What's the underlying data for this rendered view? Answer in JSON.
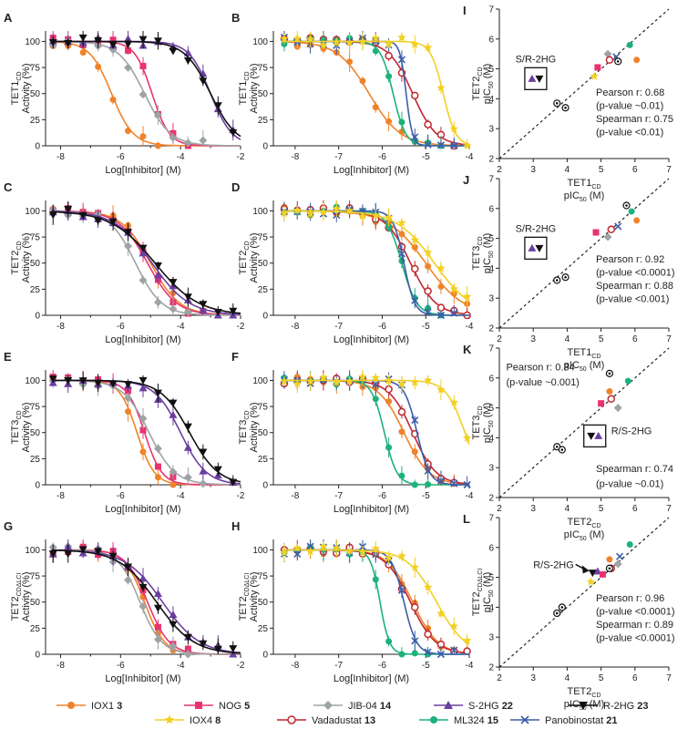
{
  "colors": {
    "IOX1": "#f0832a",
    "NOG": "#e8336f",
    "JIB04": "#9ea3a6",
    "S2HG": "#6b3fa0",
    "R2HG": "#111111",
    "IOX4": "#f2d024",
    "Vadadustat": "#c0272d",
    "ML324": "#1db27a",
    "Panobinostat": "#3b5ea8"
  },
  "legend": [
    {
      "key": "IOX1",
      "name": "IOX1",
      "num": "3",
      "marker": "circle"
    },
    {
      "key": "NOG",
      "name": "NOG",
      "num": "5",
      "marker": "square"
    },
    {
      "key": "JIB04",
      "name": "JIB-04",
      "num": "14",
      "marker": "diamond"
    },
    {
      "key": "S2HG",
      "name": "S-2HG",
      "num": "22",
      "marker": "tri-up"
    },
    {
      "key": "R2HG",
      "name": "R-2HG",
      "num": "23",
      "marker": "tri-down"
    },
    {
      "key": "IOX4",
      "name": "IOX4",
      "num": "8",
      "marker": "star"
    },
    {
      "key": "Vadadustat",
      "name": "Vadadustat",
      "num": "13",
      "marker": "open-circle"
    },
    {
      "key": "ML324",
      "name": "ML324",
      "num": "15",
      "marker": "circle"
    },
    {
      "key": "Panobinostat",
      "name": "Panobinostat",
      "num": "21",
      "marker": "x"
    }
  ],
  "chart_data": [
    {
      "id": "A",
      "type": "line",
      "enzyme": "TET1",
      "sub": "CD",
      "ylabel_line2": "Activity (%)",
      "xlabel": "Log[Inhibitor] (M)",
      "xlim": [
        -8.5,
        -2
      ],
      "ylim": [
        0,
        110
      ],
      "xticks": [
        -8,
        -6,
        -4,
        -2
      ],
      "yticks": [
        0,
        25,
        50,
        75,
        100
      ],
      "series": [
        {
          "key": "IOX1",
          "logIC50": -6.3,
          "hill": 1.2
        },
        {
          "key": "NOG",
          "logIC50": -4.95,
          "hill": 1.5
        },
        {
          "key": "JIB04",
          "logIC50": -5.2,
          "hill": 1.0
        },
        {
          "key": "S2HG",
          "logIC50": -3.0,
          "hill": 1.2
        },
        {
          "key": "R2HG",
          "logIC50": -3.0,
          "hill": 1.0
        }
      ]
    },
    {
      "id": "B",
      "type": "line",
      "enzyme": "TET1",
      "sub": "CD",
      "ylabel_line2": "Activity (%)",
      "xlabel": "Log[Inhibitor] (M)",
      "xlim": [
        -8.5,
        -4
      ],
      "ylim": [
        0,
        110
      ],
      "xticks": [
        -8,
        -7,
        -6,
        -5,
        -4
      ],
      "yticks": [
        0,
        25,
        50,
        75,
        100
      ],
      "series": [
        {
          "key": "IOX1",
          "logIC50": -6.3,
          "hill": 1.2
        },
        {
          "key": "Vadadustat",
          "logIC50": -5.3,
          "hill": 1.6
        },
        {
          "key": "ML324",
          "logIC50": -5.75,
          "hill": 3.0
        },
        {
          "key": "Panobinostat",
          "logIC50": -5.45,
          "hill": 6.0
        },
        {
          "key": "IOX4",
          "logIC50": -4.6,
          "hill": 3.0
        }
      ]
    },
    {
      "id": "C",
      "type": "line",
      "enzyme": "TET2",
      "sub": "CD",
      "ylabel_line2": "Activity (%)",
      "xlabel": "Log[Inhibitor] (M)",
      "xlim": [
        -8.5,
        -2
      ],
      "ylim": [
        0,
        110
      ],
      "xticks": [
        -8,
        -6,
        -4,
        -2
      ],
      "yticks": [
        0,
        25,
        50,
        75,
        100
      ],
      "series": [
        {
          "key": "IOX1",
          "logIC50": -5.0,
          "hill": 0.9
        },
        {
          "key": "NOG",
          "logIC50": -5.1,
          "hill": 0.9
        },
        {
          "key": "JIB04",
          "logIC50": -5.5,
          "hill": 1.0
        },
        {
          "key": "S2HG",
          "logIC50": -4.95,
          "hill": 0.7
        },
        {
          "key": "R2HG",
          "logIC50": -4.85,
          "hill": 0.6
        }
      ]
    },
    {
      "id": "D",
      "type": "line",
      "enzyme": "TET2",
      "sub": "CD",
      "ylabel_line2": "Activity (%)",
      "xlabel": "Log[Inhibitor] (M)",
      "xlim": [
        -8.5,
        -4
      ],
      "ylim": [
        0,
        110
      ],
      "xticks": [
        -8,
        -7,
        -6,
        -5,
        -4
      ],
      "yticks": [
        0,
        25,
        50,
        75,
        100
      ],
      "series": [
        {
          "key": "IOX1",
          "logIC50": -5.0,
          "hill": 1.0
        },
        {
          "key": "Vadadustat",
          "logIC50": -5.35,
          "hill": 1.5
        },
        {
          "key": "ML324",
          "logIC50": -5.55,
          "hill": 2.5
        },
        {
          "key": "Panobinostat",
          "logIC50": -5.5,
          "hill": 3.5
        },
        {
          "key": "IOX4",
          "logIC50": -4.8,
          "hill": 1.0
        }
      ]
    },
    {
      "id": "E",
      "type": "line",
      "enzyme": "TET3",
      "sub": "CD",
      "ylabel_line2": "Activity (%)",
      "xlabel": "Log[Inhibitor] (M)",
      "xlim": [
        -8.5,
        -2
      ],
      "ylim": [
        0,
        110
      ],
      "xticks": [
        -8,
        -6,
        -4,
        -2
      ],
      "yticks": [
        0,
        25,
        50,
        75,
        100
      ],
      "series": [
        {
          "key": "IOX1",
          "logIC50": -5.45,
          "hill": 1.5
        },
        {
          "key": "NOG",
          "logIC50": -5.2,
          "hill": 1.5
        },
        {
          "key": "JIB04",
          "logIC50": -5.05,
          "hill": 1.0
        },
        {
          "key": "S2HG",
          "logIC50": -4.0,
          "hill": 1.0
        },
        {
          "key": "R2HG",
          "logIC50": -3.7,
          "hill": 0.9
        }
      ]
    },
    {
      "id": "F",
      "type": "line",
      "enzyme": "TET3",
      "sub": "CD",
      "ylabel_line2": "Activity (%)",
      "xlabel": "Log[Inhibitor] (M)",
      "xlim": [
        -8.5,
        -4
      ],
      "ylim": [
        0,
        110
      ],
      "xticks": [
        -8,
        -7,
        -6,
        -5,
        -4
      ],
      "yticks": [
        0,
        25,
        50,
        75,
        100
      ],
      "series": [
        {
          "key": "IOX1",
          "logIC50": -5.5,
          "hill": 1.5
        },
        {
          "key": "Vadadustat",
          "logIC50": -5.3,
          "hill": 1.6
        },
        {
          "key": "ML324",
          "logIC50": -5.95,
          "hill": 3.0
        },
        {
          "key": "Panobinostat",
          "logIC50": -5.2,
          "hill": 3.0
        },
        {
          "key": "IOX4",
          "logIC50": -4.1,
          "hill": 2.0
        }
      ]
    },
    {
      "id": "G",
      "type": "line",
      "enzyme": "TET2",
      "sub": "CDΔLCI",
      "ylabel_line2": "Activity (%)",
      "xlabel": "Log[Inhibitor] (M)",
      "xlim": [
        -8.5,
        -2
      ],
      "ylim": [
        0,
        110
      ],
      "xticks": [
        -8,
        -6,
        -4,
        -2
      ],
      "yticks": [
        0,
        25,
        50,
        75,
        100
      ],
      "series": [
        {
          "key": "IOX1",
          "logIC50": -5.2,
          "hill": 1.3
        },
        {
          "key": "NOG",
          "logIC50": -5.1,
          "hill": 1.2
        },
        {
          "key": "JIB04",
          "logIC50": -5.35,
          "hill": 1.2
        },
        {
          "key": "S2HG",
          "logIC50": -4.6,
          "hill": 0.7
        },
        {
          "key": "R2HG",
          "logIC50": -4.8,
          "hill": 0.7
        }
      ]
    },
    {
      "id": "H",
      "type": "line",
      "enzyme": "TET2",
      "sub": "CDΔLCI",
      "ylabel_line2": "Activity (%)",
      "xlabel": "Log[Inhibitor] (M)",
      "xlim": [
        -8.5,
        -4
      ],
      "ylim": [
        0,
        110
      ],
      "xticks": [
        -8,
        -7,
        -6,
        -5,
        -4
      ],
      "yticks": [
        0,
        25,
        50,
        75,
        100
      ],
      "series": [
        {
          "key": "IOX1",
          "logIC50": -5.3,
          "hill": 1.5
        },
        {
          "key": "Vadadustat",
          "logIC50": -5.35,
          "hill": 1.5
        },
        {
          "key": "ML324",
          "logIC50": -6.05,
          "hill": 4.0
        },
        {
          "key": "Panobinostat",
          "logIC50": -5.5,
          "hill": 3.0
        },
        {
          "key": "IOX4",
          "logIC50": -4.75,
          "hill": 1.3
        }
      ]
    },
    {
      "id": "I",
      "type": "scatter",
      "xenz": "TET1",
      "xsub": "CD",
      "yenz": "TET2",
      "ysub": "CD",
      "xlim": [
        2,
        7
      ],
      "ylim": [
        2,
        7
      ],
      "xticks": [
        2,
        3,
        4,
        5,
        6,
        7
      ],
      "yticks": [
        2,
        3,
        4,
        5,
        6,
        7
      ],
      "boxed": "S/R-2HG",
      "boxed_markers": [
        "S2HG",
        "R2HG"
      ],
      "label_pos": "left",
      "stats": [
        "Pearson r: 0.68",
        "(p-value ~0.01)",
        "Spearman r: 0.75",
        "(p-value <0.01)"
      ],
      "points": [
        {
          "key": "R2HG",
          "x": 3.7,
          "y": 3.85,
          "marker": "circle-dot"
        },
        {
          "key": "S2HG",
          "x": 3.95,
          "y": 3.7,
          "marker": "circle-dot"
        },
        {
          "key": "IOX4",
          "x": 4.8,
          "y": 4.75
        },
        {
          "key": "NOG",
          "x": 4.9,
          "y": 5.05
        },
        {
          "key": "JIB04",
          "x": 5.2,
          "y": 5.5
        },
        {
          "key": "Vadadustat",
          "x": 5.25,
          "y": 5.3
        },
        {
          "key": "Panobinostat",
          "x": 5.45,
          "y": 5.4
        },
        {
          "key": "R2HG",
          "x": 5.5,
          "y": 5.25,
          "marker": "circle-dot"
        },
        {
          "key": "ML324",
          "x": 5.85,
          "y": 5.8
        },
        {
          "key": "IOX1",
          "x": 6.05,
          "y": 5.3
        }
      ]
    },
    {
      "id": "J",
      "type": "scatter",
      "xenz": "TET1",
      "xsub": "CD",
      "yenz": "TET3",
      "ysub": "CD",
      "xlim": [
        2,
        7
      ],
      "ylim": [
        2,
        7
      ],
      "xticks": [
        2,
        3,
        4,
        5,
        6,
        7
      ],
      "yticks": [
        2,
        3,
        4,
        5,
        6,
        7
      ],
      "boxed": "S/R-2HG",
      "boxed_markers": [
        "S2HG",
        "R2HG"
      ],
      "label_pos": "left",
      "stats": [
        "Pearson r: 0.92",
        "(p-value <0.0001)",
        "Spearman r: 0.88",
        "(p-value <0.001)"
      ],
      "points": [
        {
          "key": "R2HG",
          "x": 3.7,
          "y": 3.6,
          "marker": "circle-dot"
        },
        {
          "key": "S2HG",
          "x": 3.95,
          "y": 3.7,
          "marker": "circle-dot"
        },
        {
          "key": "NOG",
          "x": 4.85,
          "y": 5.2
        },
        {
          "key": "JIB04",
          "x": 5.2,
          "y": 5.05
        },
        {
          "key": "Vadadustat",
          "x": 5.3,
          "y": 5.3
        },
        {
          "key": "Panobinostat",
          "x": 5.5,
          "y": 5.4
        },
        {
          "key": "R2HG",
          "x": 5.75,
          "y": 6.1,
          "marker": "circle-dot"
        },
        {
          "key": "ML324",
          "x": 5.9,
          "y": 5.9
        },
        {
          "key": "IOX1",
          "x": 6.05,
          "y": 5.6
        }
      ]
    },
    {
      "id": "K",
      "type": "scatter",
      "xenz": "TET2",
      "xsub": "CD",
      "yenz": "TET3",
      "ysub": "CD",
      "xlim": [
        2,
        7
      ],
      "ylim": [
        2,
        7
      ],
      "xticks": [
        2,
        3,
        4,
        5,
        6,
        7
      ],
      "yticks": [
        2,
        3,
        4,
        5,
        6,
        7
      ],
      "boxed": "R/S-2HG",
      "boxed_markers": [
        "R2HG",
        "S2HG"
      ],
      "label_pos": "right",
      "stats": [
        "Pearson r: 0.84",
        "(p-value ~0.001)",
        "Spearman r: 0.74",
        "(p-value ~0.01)"
      ],
      "points": [
        {
          "key": "R2HG",
          "x": 3.7,
          "y": 3.7,
          "marker": "circle-dot"
        },
        {
          "key": "S2HG",
          "x": 3.85,
          "y": 3.6,
          "marker": "circle-dot"
        },
        {
          "key": "NOG",
          "x": 5.0,
          "y": 5.15
        },
        {
          "key": "IOX1",
          "x": 5.25,
          "y": 5.55
        },
        {
          "key": "Vadadustat",
          "x": 5.3,
          "y": 5.3
        },
        {
          "key": "JIB04",
          "x": 5.5,
          "y": 5.0
        },
        {
          "key": "R2HG",
          "x": 5.25,
          "y": 6.15,
          "marker": "circle-dot"
        },
        {
          "key": "ML324",
          "x": 5.8,
          "y": 5.9
        }
      ]
    },
    {
      "id": "L",
      "type": "scatter",
      "xenz": "TET2",
      "xsub": "CD",
      "yenz": "TET2",
      "ysub": "CDΔLCI",
      "xlim": [
        2,
        7
      ],
      "ylim": [
        2,
        7
      ],
      "xticks": [
        2,
        3,
        4,
        5,
        6,
        7
      ],
      "yticks": [
        2,
        3,
        4,
        5,
        6,
        7
      ],
      "arrow_label": "R/S-2HG",
      "label_pos": "right",
      "stats": [
        "Pearson r: 0.96",
        "(p-value <0.0001)",
        "Spearman r: 0.89",
        "(p-value <0.0001)"
      ],
      "points": [
        {
          "key": "R2HG",
          "x": 3.7,
          "y": 3.8,
          "marker": "circle-dot"
        },
        {
          "key": "S2HG",
          "x": 3.85,
          "y": 4.0,
          "marker": "circle-dot"
        },
        {
          "key": "IOX4",
          "x": 4.7,
          "y": 4.85
        },
        {
          "key": "R2HG",
          "x": 4.75,
          "y": 5.15
        },
        {
          "key": "S2HG",
          "x": 4.9,
          "y": 5.2
        },
        {
          "key": "NOG",
          "x": 5.05,
          "y": 5.1
        },
        {
          "key": "Vadadustat",
          "x": 5.3,
          "y": 5.3
        },
        {
          "key": "IOX1",
          "x": 5.25,
          "y": 5.6
        },
        {
          "key": "R2HG",
          "x": 5.25,
          "y": 5.3,
          "marker": "circle-dot"
        },
        {
          "key": "JIB04",
          "x": 5.5,
          "y": 5.45
        },
        {
          "key": "Panobinostat",
          "x": 5.55,
          "y": 5.7
        },
        {
          "key": "ML324",
          "x": 5.85,
          "y": 6.1
        }
      ]
    }
  ],
  "axis_text": {
    "activity": "Activity (%)",
    "pic50": "pIC",
    "pic50_sub": "50",
    "pic50_unit": " (M)"
  }
}
